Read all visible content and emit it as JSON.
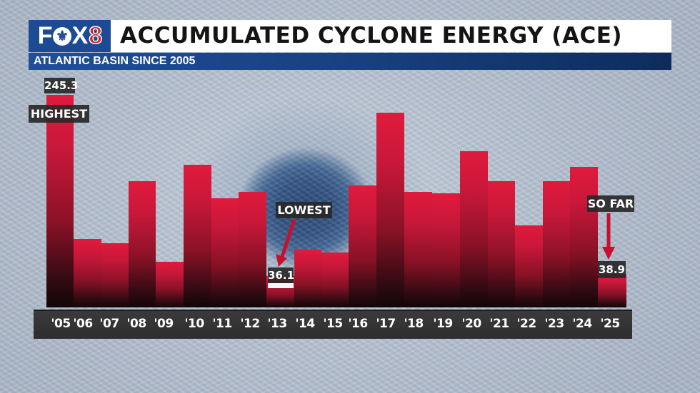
{
  "header": {
    "logo": {
      "fox": "F",
      "fleur": "⚜",
      "x": "X",
      "eight": "8"
    },
    "title": "ACCUMULATED CYCLONE ENERGY (ACE)",
    "subtitle": "ATLANTIC BASIN SINCE 2005"
  },
  "colors": {
    "bar_top": "#e01a3c",
    "bar_bottom": "#120608",
    "header_blue": "#1d4b93",
    "subtitle_blue_dark": "#0d2c5c",
    "axis_strip": "#333333",
    "arrow_red": "#c8102e"
  },
  "annotations": {
    "highest": {
      "value": "245.3",
      "label": "HIGHEST"
    },
    "lowest": {
      "value": "36.1",
      "label": "LOWEST"
    },
    "so_far": {
      "value": "38.9",
      "label": "SO FAR"
    }
  },
  "chart_data": {
    "type": "bar",
    "title": "ACCUMULATED CYCLONE ENERGY (ACE)",
    "subtitle": "ATLANTIC BASIN SINCE 2005",
    "xlabel": "",
    "ylabel": "",
    "categories": [
      "'05",
      "'06",
      "'07",
      "'08",
      "'09",
      "'10",
      "'11",
      "'12",
      "'13",
      "'14",
      "'15",
      "'16",
      "'17",
      "'18",
      "'19",
      "'20",
      "'21",
      "'22",
      "'23",
      "'24",
      "'25"
    ],
    "values": [
      245.3,
      79,
      74,
      146,
      53,
      165,
      126,
      133,
      36.1,
      67,
      63,
      141,
      225,
      133,
      132,
      180,
      146,
      95,
      146,
      162,
      38.9
    ],
    "labeled_values": {
      "'05": "245.3",
      "'13": "36.1",
      "'25": "38.9"
    },
    "annotations": [
      {
        "category": "'05",
        "text": "HIGHEST"
      },
      {
        "category": "'13",
        "text": "LOWEST"
      },
      {
        "category": "'25",
        "text": "SO FAR"
      }
    ],
    "ylim": [
      0,
      245.3
    ],
    "grid": false,
    "legend": "none",
    "y_axis_visible": false
  }
}
